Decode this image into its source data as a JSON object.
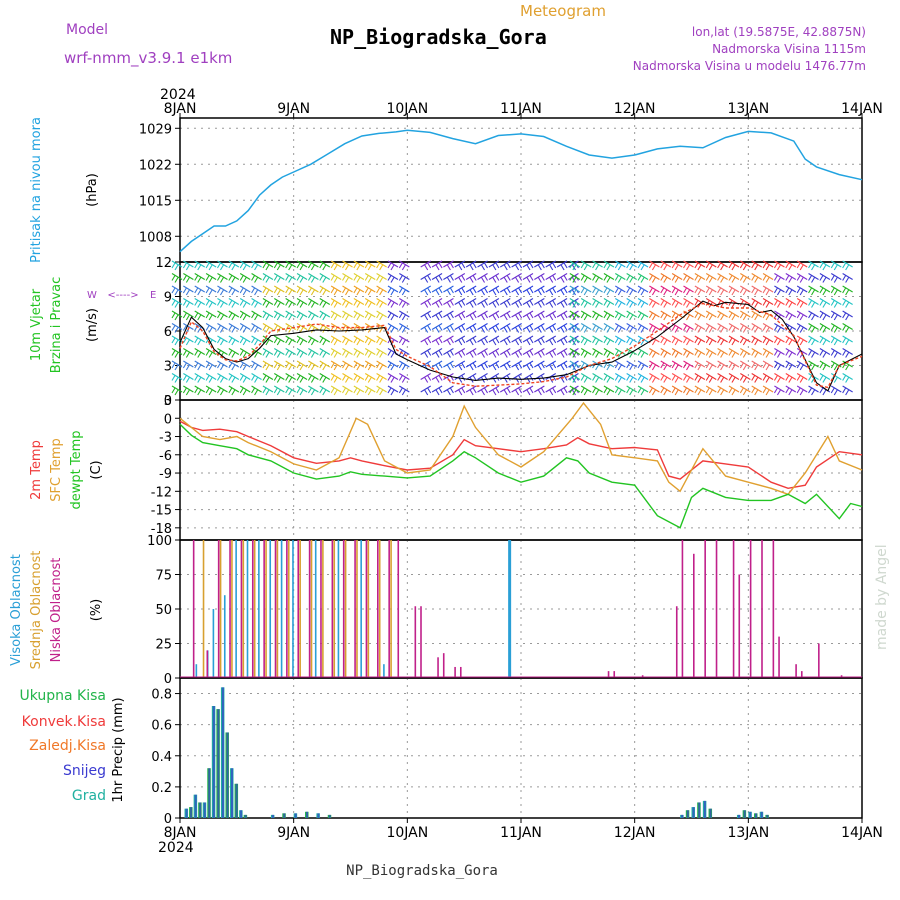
{
  "header": {
    "model_label": "Model",
    "model_value": "wrf-nmm_v3.9.1 e1km",
    "title": "NP_Biogradska_Gora",
    "subtitle": "Meteogram",
    "coords": "lon,lat (19.5875E, 42.8875N)",
    "elevation": "Nadmorska Visina 1115m",
    "model_elevation": "Nadmorska Visina u modelu 1476.77m",
    "footer": "NP_Biogradska_Gora",
    "credit": "made by Angel",
    "year_top": "2024",
    "year_bottom": "2024"
  },
  "colors": {
    "pressure": "#22a3e0",
    "temp2m": "#ef3b3b",
    "sfc": "#e0a030",
    "dew": "#22c422",
    "high_cloud": "#2a9fd6",
    "mid_cloud": "#d8a030",
    "low_cloud": "#c0208a",
    "total_precip": "#22b44a",
    "conv": "#ef3b3b",
    "frz": "#f07828",
    "snow": "#3a3ad0",
    "graupel": "#20b0a0",
    "purple_text": "#a040c0",
    "wind_speed": "#000000",
    "gust": "#ee4422"
  },
  "chart_data": [
    {
      "type": "line",
      "panel": "pressure",
      "ylabel_left": "Pritisak na nivou mora",
      "ylabel_unit": "(hPa)",
      "yticks": [
        1008,
        1015,
        1022,
        1029
      ],
      "ylim": [
        1003,
        1031
      ],
      "xticks": [
        "8JAN",
        "9JAN",
        "10JAN",
        "11JAN",
        "12JAN",
        "13JAN",
        "14JAN"
      ],
      "series": [
        {
          "x": [
            0,
            0.1,
            0.2,
            0.3,
            0.4,
            0.5,
            0.6,
            0.7,
            0.8,
            0.9,
            1.0,
            1.15,
            1.3,
            1.45,
            1.6,
            1.75,
            1.9,
            2.0,
            2.2,
            2.4,
            2.6,
            2.8,
            3.0,
            3.2,
            3.4,
            3.6,
            3.8,
            4.0,
            4.2,
            4.4,
            4.6,
            4.8,
            5.0,
            5.2,
            5.4,
            5.5,
            5.6,
            5.8,
            6.0
          ],
          "y": [
            1005,
            1007,
            1008.5,
            1010,
            1010,
            1011,
            1013,
            1016,
            1018,
            1019.5,
            1020.5,
            1022,
            1024,
            1026,
            1027.5,
            1028,
            1028.3,
            1028.6,
            1028.2,
            1027,
            1026,
            1027.6,
            1027.9,
            1027.4,
            1025.5,
            1023.8,
            1023.2,
            1023.8,
            1025,
            1025.5,
            1025.2,
            1027.2,
            1028.4,
            1028.1,
            1026.5,
            1023,
            1021.5,
            1020,
            1019
          ]
        }
      ]
    },
    {
      "type": "line",
      "panel": "wind",
      "ylabel_left": [
        "10m Vjetar",
        "Brzina i Pravac"
      ],
      "ylabel_unit": "(m/s)",
      "compass": [
        "W",
        "<---->",
        "E"
      ],
      "yticks": [
        0,
        3,
        6,
        9,
        12
      ],
      "ylim": [
        0,
        12
      ],
      "series": [
        {
          "name": "speed",
          "x": [
            0,
            0.1,
            0.2,
            0.3,
            0.4,
            0.5,
            0.6,
            0.7,
            0.8,
            1.0,
            1.2,
            1.4,
            1.6,
            1.8,
            1.9,
            2.0,
            2.2,
            2.4,
            2.6,
            2.8,
            3.0,
            3.2,
            3.4,
            3.6,
            3.8,
            4.0,
            4.2,
            4.4,
            4.6,
            4.7,
            4.8,
            5.0,
            5.1,
            5.2,
            5.3,
            5.4,
            5.5,
            5.6,
            5.7,
            5.8,
            6.0
          ],
          "y": [
            5,
            7.2,
            6.3,
            4.4,
            3.6,
            3.3,
            3.6,
            4.5,
            5.6,
            5.8,
            6.1,
            6.0,
            6.1,
            6.3,
            4,
            3.5,
            2.6,
            2,
            1.7,
            1.9,
            1.8,
            1.9,
            2.2,
            3,
            3.3,
            4.3,
            5.5,
            7,
            8.6,
            8.2,
            8.5,
            8.3,
            7.6,
            7.8,
            7,
            5.5,
            3.5,
            1.5,
            0.8,
            3,
            4
          ]
        },
        {
          "name": "gust",
          "x": [
            0,
            0.1,
            0.2,
            0.3,
            0.4,
            0.5,
            0.6,
            0.7,
            0.8,
            1.0,
            1.2,
            1.4,
            1.6,
            1.8,
            1.9,
            2.0,
            2.2,
            2.4,
            2.6,
            2.8,
            3.0,
            3.2,
            3.4,
            3.6,
            3.8,
            4.0,
            4.2,
            4.4,
            4.6,
            4.8,
            5.0,
            5.2,
            5.4,
            5.5,
            5.6,
            5.7,
            5.8,
            6.0
          ],
          "y": [
            4.5,
            6.8,
            6,
            4.2,
            3.5,
            3.4,
            3.8,
            4.8,
            6,
            6.3,
            6.6,
            6.3,
            6.3,
            6.5,
            4.4,
            3.8,
            2.9,
            1.5,
            1.2,
            1.3,
            1.4,
            1.6,
            2,
            3,
            3.6,
            4.7,
            6,
            7.4,
            8.4,
            8,
            8,
            7.4,
            5.6,
            3.4,
            1.3,
            1.1,
            3,
            3.8
          ]
        }
      ]
    },
    {
      "type": "line",
      "panel": "temperature",
      "ylabel_left": [
        "2m Temp",
        "SFC Temp",
        "dewpt Temp"
      ],
      "ylabel_unit": "(C)",
      "yticks": [
        -18,
        -15,
        -12,
        -9,
        -6,
        -3,
        0,
        3
      ],
      "ylim": [
        -20,
        3
      ],
      "series": [
        {
          "name": "2m Temp",
          "x": [
            0,
            0.1,
            0.2,
            0.35,
            0.5,
            0.6,
            0.8,
            1.0,
            1.2,
            1.4,
            1.5,
            1.6,
            1.8,
            2.0,
            2.2,
            2.4,
            2.5,
            2.6,
            2.8,
            3.0,
            3.2,
            3.4,
            3.5,
            3.6,
            3.8,
            4.0,
            4.2,
            4.3,
            4.4,
            4.6,
            4.8,
            5.0,
            5.2,
            5.35,
            5.5,
            5.6,
            5.8,
            6.0
          ],
          "y": [
            -0.5,
            -1.5,
            -2,
            -1.8,
            -2.2,
            -3,
            -4.5,
            -6.5,
            -7.4,
            -7,
            -6.5,
            -7,
            -7.8,
            -8.5,
            -8.2,
            -6,
            -3.5,
            -4.5,
            -5,
            -5.5,
            -5,
            -4.4,
            -3.2,
            -4.2,
            -5,
            -4.8,
            -5.2,
            -9.5,
            -10,
            -7,
            -7.5,
            -8,
            -10.5,
            -11.5,
            -11,
            -8,
            -5.5,
            -6
          ]
        },
        {
          "name": "SFC Temp",
          "x": [
            0,
            0.1,
            0.2,
            0.35,
            0.5,
            0.6,
            0.8,
            1.0,
            1.2,
            1.4,
            1.55,
            1.65,
            1.8,
            2.0,
            2.2,
            2.4,
            2.5,
            2.6,
            2.8,
            3.0,
            3.2,
            3.45,
            3.55,
            3.7,
            3.8,
            4.0,
            4.2,
            4.3,
            4.4,
            4.6,
            4.8,
            5.0,
            5.2,
            5.35,
            5.5,
            5.7,
            5.8,
            6.0
          ],
          "y": [
            0,
            -1.5,
            -3,
            -3.5,
            -3,
            -4,
            -5.5,
            -7.5,
            -8.5,
            -6.5,
            0,
            -1,
            -7,
            -9,
            -8.5,
            -3,
            2,
            -1.5,
            -6,
            -8,
            -5.5,
            0,
            2.5,
            -1,
            -6,
            -6.5,
            -7,
            -10.5,
            -12,
            -5,
            -9.5,
            -10.5,
            -11.5,
            -12.5,
            -9,
            -3,
            -7,
            -8.5
          ]
        },
        {
          "name": "dewpt Temp",
          "x": [
            0,
            0.1,
            0.2,
            0.35,
            0.5,
            0.6,
            0.8,
            1.0,
            1.2,
            1.4,
            1.5,
            1.6,
            1.8,
            2.0,
            2.2,
            2.4,
            2.5,
            2.6,
            2.8,
            3.0,
            3.2,
            3.4,
            3.5,
            3.6,
            3.8,
            4.0,
            4.2,
            4.4,
            4.5,
            4.6,
            4.8,
            5.0,
            5.2,
            5.35,
            5.5,
            5.6,
            5.8,
            5.9,
            6.0
          ],
          "y": [
            -1,
            -2.8,
            -4,
            -4.5,
            -5,
            -6,
            -7,
            -9,
            -10,
            -9.5,
            -8.8,
            -9.2,
            -9.5,
            -9.8,
            -9.5,
            -7,
            -5.5,
            -6.5,
            -9,
            -10.5,
            -9.5,
            -6.5,
            -7,
            -9,
            -10.5,
            -11,
            -16,
            -18,
            -13,
            -11.5,
            -13,
            -13.5,
            -13.5,
            -12.5,
            -14,
            -12.5,
            -16.5,
            -14,
            -14.5
          ]
        }
      ]
    },
    {
      "type": "bar",
      "panel": "clouds",
      "ylabel_left": [
        "Visoka Oblacnost",
        "Srednja Oblacnost",
        "Niska Oblacnost"
      ],
      "ylabel_unit": "(%)",
      "yticks": [
        0,
        25,
        50,
        75,
        100
      ],
      "ylim": [
        0,
        100
      ],
      "series": [
        {
          "name": "Visoka Oblacnost",
          "x": [
            0.15,
            0.25,
            0.3,
            0.4,
            0.5,
            0.6,
            0.7,
            0.8,
            0.9,
            1.0,
            1.2,
            1.4,
            1.6,
            1.8,
            2.9
          ],
          "values": [
            10,
            20,
            50,
            60,
            100,
            100,
            100,
            100,
            100,
            100,
            100,
            100,
            100,
            10,
            100
          ]
        },
        {
          "name": "Srednja Oblacnost",
          "x": [
            0.2,
            0.35,
            0.45,
            0.55,
            0.65,
            0.75,
            0.85,
            0.95,
            1.05,
            1.15,
            1.25,
            1.35,
            1.45,
            1.55,
            1.65,
            1.75,
            1.85
          ],
          "values": [
            100,
            100,
            100,
            100,
            100,
            100,
            100,
            100,
            100,
            100,
            100,
            100,
            100,
            100,
            100,
            100,
            100
          ]
        },
        {
          "name": "Niska Oblacnost",
          "x": [
            0.1,
            0.22,
            0.32,
            0.42,
            0.52,
            0.62,
            0.72,
            0.82,
            0.92,
            1.02,
            1.12,
            1.22,
            1.32,
            1.42,
            1.52,
            1.62,
            1.72,
            1.82,
            1.9,
            2.05,
            2.1,
            2.25,
            2.3,
            2.4,
            2.45,
            3.75,
            3.8,
            4.05,
            4.35,
            4.4,
            4.5,
            4.6,
            4.7,
            4.85,
            4.9,
            5.0,
            5.1,
            5.2,
            5.25,
            5.4,
            5.45,
            5.6,
            5.8
          ],
          "values": [
            100,
            20,
            100,
            100,
            100,
            100,
            100,
            100,
            100,
            100,
            100,
            100,
            100,
            100,
            100,
            100,
            100,
            100,
            100,
            52,
            52,
            15,
            18,
            8,
            8,
            5,
            5,
            2,
            52,
            100,
            90,
            100,
            100,
            100,
            75,
            100,
            100,
            100,
            30,
            10,
            5,
            25,
            2
          ]
        }
      ]
    },
    {
      "type": "bar",
      "panel": "precip",
      "ylabel_left": [
        "Ukupna Kisa",
        "Konvek.Kisa",
        "Zaledj.Kisa",
        "Snijeg",
        "Grad"
      ],
      "ylabel_unit": "1hr Precip (mm)",
      "yticks": [
        0,
        0.2,
        0.4,
        0.6,
        0.8
      ],
      "ylim": [
        0,
        0.9
      ],
      "series": [
        {
          "name": "Ukupna Kisa",
          "x": [
            0.04,
            0.08,
            0.12,
            0.16,
            0.2,
            0.24,
            0.28,
            0.32,
            0.36,
            0.4,
            0.44,
            0.48,
            0.52,
            0.56,
            0.8,
            0.9,
            1.0,
            1.1,
            1.2,
            1.3,
            4.4,
            4.45,
            4.5,
            4.55,
            4.6,
            4.65,
            4.9,
            4.95,
            5.0,
            5.05,
            5.1,
            5.15
          ],
          "values": [
            0.06,
            0.07,
            0.15,
            0.1,
            0.1,
            0.32,
            0.72,
            0.7,
            0.84,
            0.55,
            0.32,
            0.22,
            0.05,
            0.02,
            0.02,
            0.03,
            0.03,
            0.04,
            0.03,
            0.02,
            0.02,
            0.05,
            0.07,
            0.1,
            0.11,
            0.06,
            0.02,
            0.05,
            0.04,
            0.03,
            0.04,
            0.02
          ]
        }
      ]
    }
  ]
}
